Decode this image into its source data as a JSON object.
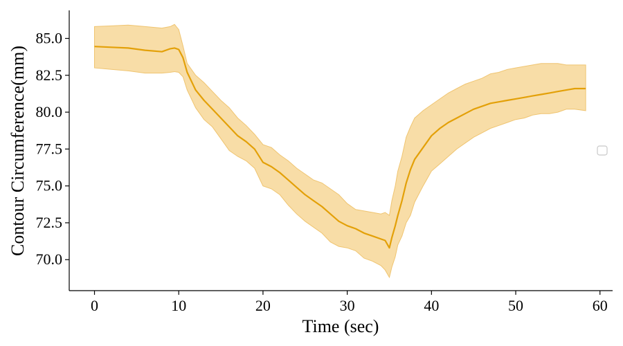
{
  "chart_data": {
    "type": "line",
    "title": "",
    "xlabel": "Time (sec)",
    "ylabel": "Contour Circumference(mm)",
    "xlim": [
      -3,
      61.5
    ],
    "ylim": [
      67.9,
      86.9
    ],
    "x_ticks": [
      0,
      10,
      20,
      30,
      40,
      50,
      60
    ],
    "x_tick_labels": [
      "0",
      "10",
      "20",
      "30",
      "40",
      "50",
      "60"
    ],
    "y_ticks": [
      70.0,
      72.5,
      75.0,
      77.5,
      80.0,
      82.5,
      85.0
    ],
    "y_tick_labels": [
      "70.0",
      "72.5",
      "75.0",
      "77.5",
      "80.0",
      "82.5",
      "85.0"
    ],
    "grid": false,
    "legend": "right, empty entry",
    "colors": {
      "line": "#e3a008",
      "band": "#f5d28a"
    },
    "series": [
      {
        "x": [
          0,
          2,
          4,
          6,
          8,
          9,
          9.5,
          10,
          10.5,
          11,
          12,
          13,
          14,
          15,
          16,
          17,
          18,
          19,
          20,
          21,
          22,
          23,
          24,
          25,
          26,
          27,
          28,
          29,
          30,
          31,
          32,
          33,
          34,
          34.5,
          35,
          35.3,
          35.7,
          36,
          36.5,
          37,
          37.5,
          38,
          39,
          40,
          41,
          42,
          43,
          44,
          45,
          46,
          47,
          48,
          49,
          50,
          51,
          52,
          53,
          54,
          55,
          56,
          57,
          58.3
        ],
        "y": [
          84.45,
          84.4,
          84.35,
          84.2,
          84.1,
          84.3,
          84.35,
          84.25,
          83.7,
          82.7,
          81.5,
          80.8,
          80.2,
          79.6,
          79.0,
          78.4,
          78.0,
          77.5,
          76.6,
          76.3,
          75.9,
          75.4,
          74.9,
          74.4,
          74.0,
          73.6,
          73.1,
          72.6,
          72.3,
          72.1,
          71.8,
          71.6,
          71.4,
          71.3,
          70.8,
          71.5,
          72.3,
          73.0,
          74.0,
          75.2,
          76.1,
          76.8,
          77.6,
          78.4,
          78.9,
          79.3,
          79.6,
          79.9,
          80.2,
          80.4,
          80.6,
          80.7,
          80.8,
          80.9,
          81.0,
          81.1,
          81.2,
          81.3,
          81.4,
          81.5,
          81.6,
          81.6
        ],
        "lower": [
          83.0,
          82.9,
          82.8,
          82.65,
          82.65,
          82.7,
          82.75,
          82.7,
          82.4,
          81.5,
          80.3,
          79.5,
          79.0,
          78.2,
          77.4,
          77.0,
          76.7,
          76.2,
          75.0,
          74.8,
          74.4,
          73.7,
          73.1,
          72.6,
          72.2,
          71.8,
          71.2,
          70.9,
          70.8,
          70.6,
          70.1,
          69.9,
          69.6,
          69.3,
          68.8,
          69.5,
          70.2,
          71.0,
          71.6,
          72.5,
          73.0,
          73.9,
          75.0,
          76.0,
          76.5,
          77.0,
          77.5,
          77.9,
          78.3,
          78.6,
          78.9,
          79.1,
          79.3,
          79.5,
          79.6,
          79.8,
          79.9,
          79.9,
          80.0,
          80.2,
          80.2,
          80.1
        ],
        "upper": [
          85.8,
          85.85,
          85.9,
          85.8,
          85.7,
          85.8,
          85.95,
          85.6,
          84.5,
          83.3,
          82.5,
          82.0,
          81.4,
          80.8,
          80.3,
          79.6,
          79.1,
          78.5,
          77.8,
          77.6,
          77.1,
          76.7,
          76.2,
          75.8,
          75.4,
          75.2,
          74.8,
          74.4,
          73.8,
          73.4,
          73.3,
          73.2,
          73.1,
          73.2,
          73.0,
          74.0,
          75.0,
          76.0,
          77.0,
          78.3,
          79.0,
          79.6,
          80.1,
          80.5,
          80.9,
          81.3,
          81.6,
          81.9,
          82.1,
          82.3,
          82.6,
          82.7,
          82.9,
          83.0,
          83.1,
          83.2,
          83.3,
          83.3,
          83.3,
          83.2,
          83.2,
          83.2
        ]
      }
    ]
  }
}
